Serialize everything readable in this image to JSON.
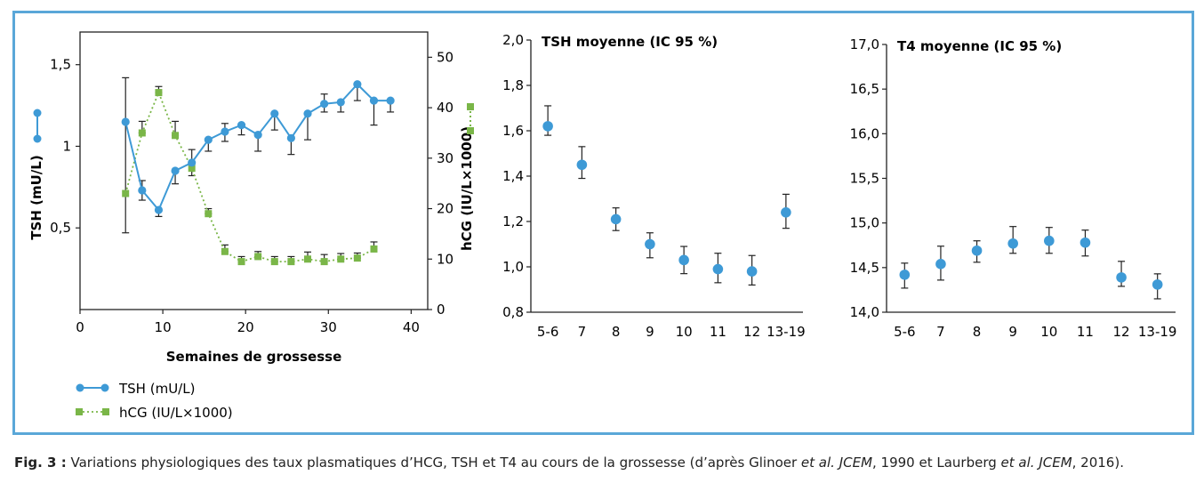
{
  "chart_data": [
    {
      "type": "line",
      "xlabel": "Semaines de grossesse",
      "ylabel": "TSH (mU/L)",
      "y2label": "hCG (IU/L×1000)",
      "xlim": [
        0,
        42
      ],
      "xticks": [
        0,
        10,
        20,
        30,
        40
      ],
      "ylim": [
        0,
        1.7
      ],
      "yticks": [
        0.5,
        1,
        1.5
      ],
      "ytick_labels": [
        "0,5",
        "1",
        "1,5"
      ],
      "y2lim": [
        0,
        55
      ],
      "y2ticks": [
        0,
        10,
        20,
        30,
        40,
        50
      ],
      "legend_position": "bottom-left",
      "series": [
        {
          "name": "TSH (mU/L)",
          "axis": "left",
          "color": "#3e9ad6",
          "style": "solid-line-circles",
          "x": [
            5.5,
            7.5,
            9.5,
            11.5,
            13.5,
            15.5,
            17.5,
            19.5,
            21.5,
            23.5,
            25.5,
            27.5,
            29.5,
            31.5,
            33.5,
            35.5,
            37.5
          ],
          "y": [
            1.15,
            0.73,
            0.61,
            0.85,
            0.9,
            1.04,
            1.09,
            1.13,
            1.07,
            1.2,
            1.05,
            1.2,
            1.26,
            1.27,
            1.38,
            1.28,
            1.28
          ],
          "err_low": [
            0.68,
            0.06,
            0.04,
            0.08,
            0.08,
            0.07,
            0.06,
            0.06,
            0.1,
            0.1,
            0.1,
            0.16,
            0.05,
            0.06,
            0.1,
            0.15,
            0.07
          ],
          "err_high": [
            0.27,
            0.06,
            0.0,
            0.0,
            0.08,
            0.0,
            0.05,
            0.0,
            0.0,
            0.0,
            0.0,
            0.0,
            0.06,
            0.0,
            0.0,
            0.0,
            0.0
          ]
        },
        {
          "name": "hCG (IU/L×1000)",
          "axis": "right",
          "color": "#7ab648",
          "style": "dotted-line-squares",
          "x": [
            5.5,
            7.5,
            9.5,
            11.5,
            13.5,
            15.5,
            17.5,
            19.5,
            21.5,
            23.5,
            25.5,
            27.5,
            29.5,
            31.5,
            33.5,
            35.5
          ],
          "y": [
            23,
            35,
            43,
            34.5,
            28,
            19,
            11.5,
            9.5,
            10.5,
            9.5,
            9.5,
            10,
            9.5,
            10,
            10.2,
            12
          ],
          "err_low": [
            0,
            0,
            0,
            0,
            0,
            0,
            0,
            0,
            0,
            0,
            0,
            0,
            0,
            0,
            0,
            0
          ],
          "err_high": [
            0,
            2.3,
            1.2,
            2.8,
            0,
            1.0,
            1.3,
            1.0,
            1.0,
            1.0,
            1.0,
            1.4,
            1.4,
            1.1,
            1.0,
            1.4
          ]
        }
      ]
    },
    {
      "type": "scatter",
      "title": "TSH moyenne (IC 95 %)",
      "categories": [
        "5-6",
        "7",
        "8",
        "9",
        "10",
        "11",
        "12",
        "13-19"
      ],
      "ylim": [
        0.8,
        2.0
      ],
      "yticks": [
        0.8,
        1.0,
        1.2,
        1.4,
        1.6,
        1.8,
        2.0
      ],
      "ytick_labels": [
        "0,8",
        "1,0",
        "1,2",
        "1,4",
        "1,6",
        "1,8",
        "2,0"
      ],
      "color": "#3e9ad6",
      "values": [
        1.62,
        1.45,
        1.21,
        1.1,
        1.03,
        0.99,
        0.98,
        1.24
      ],
      "err_low": [
        1.58,
        1.39,
        1.16,
        1.04,
        0.97,
        0.93,
        0.92,
        1.17
      ],
      "err_high": [
        1.71,
        1.53,
        1.26,
        1.15,
        1.09,
        1.06,
        1.05,
        1.32
      ]
    },
    {
      "type": "scatter",
      "title": "T4 moyenne (IC 95 %)",
      "categories": [
        "5-6",
        "7",
        "8",
        "9",
        "10",
        "11",
        "12",
        "13-19"
      ],
      "ylim": [
        14.0,
        17.0
      ],
      "yticks": [
        14.0,
        14.5,
        15.0,
        15.5,
        16.0,
        16.5,
        17.0
      ],
      "ytick_labels": [
        "14,0",
        "14,5",
        "15,0",
        "15,5",
        "16,0",
        "16,5",
        "17,0"
      ],
      "color": "#3e9ad6",
      "values": [
        14.42,
        14.54,
        14.69,
        14.77,
        14.8,
        14.78,
        14.39,
        14.31
      ],
      "err_low": [
        14.27,
        14.36,
        14.56,
        14.66,
        14.66,
        14.63,
        14.29,
        14.15
      ],
      "err_high": [
        14.55,
        14.74,
        14.8,
        14.96,
        14.95,
        14.92,
        14.57,
        14.43
      ]
    }
  ],
  "caption": {
    "label": "Fig. 3 :",
    "part1": " Variations physiologiques des taux plasmatiques d’HCG, TSH et T4 au cours de la grossesse (d’après Glinoer ",
    "etal1": "et al. JCEM",
    "part2": ", 1990 et Laurberg ",
    "etal2": "et al. JCEM",
    "part3": ", 2016)."
  }
}
